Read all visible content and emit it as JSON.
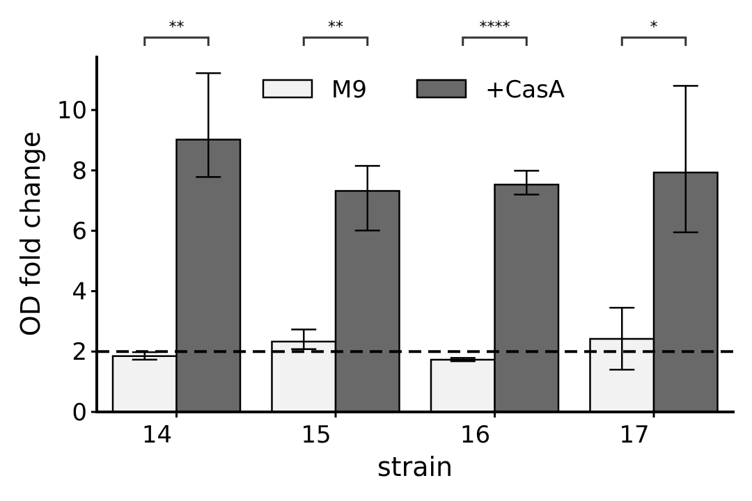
{
  "chart_data": {
    "type": "bar",
    "xlabel": "strain",
    "ylabel": "OD fold change",
    "categories": [
      "14",
      "15",
      "16",
      "17"
    ],
    "ylim": [
      0,
      11.8
    ],
    "yticks": [
      0,
      2,
      4,
      6,
      8,
      10
    ],
    "series": [
      {
        "name": "M9",
        "color": "#f2f2f2",
        "values": [
          1.85,
          2.33,
          1.73,
          2.42
        ],
        "err_low": [
          1.73,
          2.08,
          1.68,
          1.4
        ],
        "err_high": [
          1.98,
          2.73,
          1.79,
          3.45
        ]
      },
      {
        "name": "+CasA",
        "color": "#696969",
        "values": [
          9.02,
          7.32,
          7.53,
          7.93
        ],
        "err_low": [
          7.78,
          6.01,
          7.2,
          5.95
        ],
        "err_high": [
          11.22,
          8.15,
          7.99,
          10.8
        ]
      }
    ],
    "reference_line": {
      "y": 2,
      "style": "dashed"
    },
    "significance": [
      "**",
      "**",
      "****",
      "*"
    ],
    "legend": {
      "placement": "top-center",
      "columns": 2
    },
    "grid": false
  }
}
